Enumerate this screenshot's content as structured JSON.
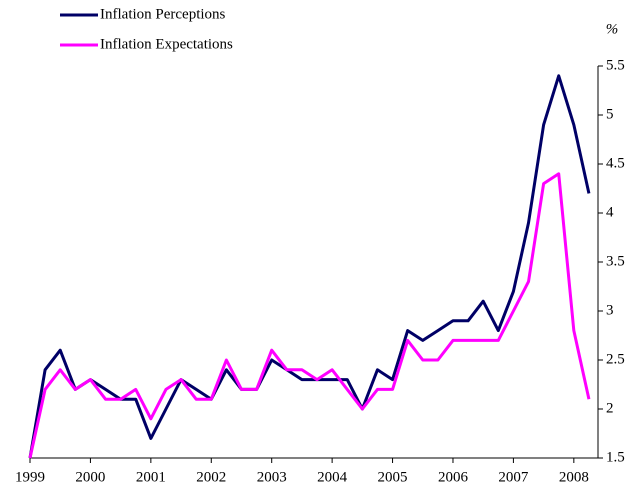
{
  "chart_data": {
    "type": "line",
    "y_axis_label": "%",
    "x": [
      1999,
      1999.25,
      1999.5,
      1999.75,
      2000,
      2000.25,
      2000.5,
      2000.75,
      2001,
      2001.25,
      2001.5,
      2001.75,
      2002,
      2002.25,
      2002.5,
      2002.75,
      2003,
      2003.25,
      2003.5,
      2003.75,
      2004,
      2004.25,
      2004.5,
      2004.75,
      2005,
      2005.25,
      2005.5,
      2005.75,
      2006,
      2006.25,
      2006.5,
      2006.75,
      2007,
      2007.25,
      2007.5,
      2007.75,
      2008,
      2008.25
    ],
    "series": [
      {
        "name": "Inflation Perceptions",
        "color": "#000066",
        "values": [
          1.5,
          2.4,
          2.6,
          2.2,
          2.3,
          2.2,
          2.1,
          2.1,
          1.7,
          2.0,
          2.3,
          2.2,
          2.1,
          2.4,
          2.2,
          2.2,
          2.5,
          2.4,
          2.3,
          2.3,
          2.3,
          2.3,
          2.0,
          2.4,
          2.3,
          2.8,
          2.7,
          2.8,
          2.9,
          2.9,
          3.1,
          2.8,
          3.2,
          3.9,
          4.9,
          5.4,
          4.9,
          4.2
        ]
      },
      {
        "name": "Inflation Expectations",
        "color": "#ff00ff",
        "values": [
          1.5,
          2.2,
          2.4,
          2.2,
          2.3,
          2.1,
          2.1,
          2.2,
          1.9,
          2.2,
          2.3,
          2.1,
          2.1,
          2.5,
          2.2,
          2.2,
          2.6,
          2.4,
          2.4,
          2.3,
          2.4,
          2.2,
          2.0,
          2.2,
          2.2,
          2.7,
          2.5,
          2.5,
          2.7,
          2.7,
          2.7,
          2.7,
          3.0,
          3.3,
          4.3,
          4.4,
          2.8,
          2.1
        ]
      }
    ],
    "xlim": [
      1999,
      2008.4
    ],
    "xticks": [
      1999,
      2000,
      2001,
      2002,
      2003,
      2004,
      2005,
      2006,
      2007,
      2008
    ],
    "ylim": [
      1.5,
      5.5
    ],
    "yticks": [
      1.5,
      2,
      2.5,
      3,
      3.5,
      4,
      4.5,
      5,
      5.5
    ],
    "legend": "top-left"
  }
}
